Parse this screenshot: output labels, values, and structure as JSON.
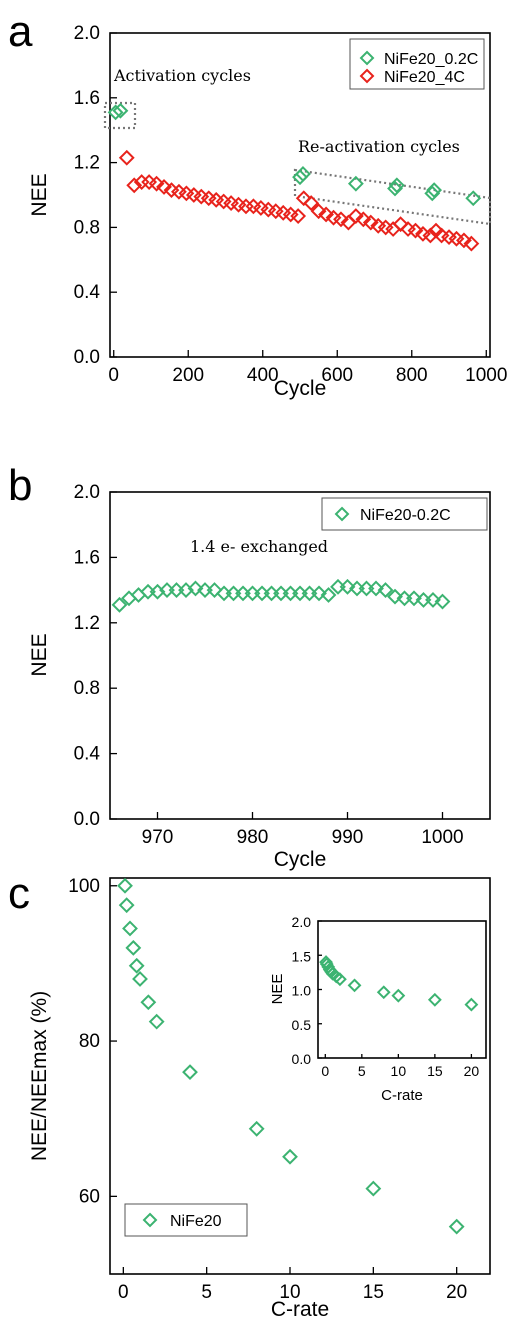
{
  "chart_data": [
    {
      "type": "scatter",
      "panel_label": "a",
      "xlabel": "Cycle",
      "ylabel": "NEE",
      "xlim": [
        -10,
        1010
      ],
      "ylim": [
        0.0,
        2.0
      ],
      "xticks": [
        "0",
        "200",
        "400",
        "600",
        "800",
        "1000"
      ],
      "xtick_values": [
        0,
        200,
        400,
        600,
        800,
        1000
      ],
      "yticks": [
        "0.0",
        "0.4",
        "0.8",
        "1.2",
        "1.6",
        "2.0"
      ],
      "ytick_values": [
        0.0,
        0.4,
        0.8,
        1.2,
        1.6,
        2.0
      ],
      "legend_position": "top-right",
      "series": [
        {
          "name": "NiFe20_0.2C",
          "color": "#3cb371",
          "marker": "diamond-open",
          "x": [
            5,
            18,
            500,
            508,
            650,
            755,
            760,
            855,
            860,
            965
          ],
          "y": [
            1.51,
            1.52,
            1.11,
            1.13,
            1.07,
            1.04,
            1.06,
            1.01,
            1.03,
            0.98
          ]
        },
        {
          "name": "NiFe20_4C",
          "color": "#e8231c",
          "marker": "diamond-open",
          "x": [
            35,
            55,
            75,
            95,
            115,
            135,
            155,
            175,
            195,
            215,
            235,
            255,
            275,
            295,
            315,
            335,
            355,
            375,
            395,
            415,
            435,
            455,
            475,
            495,
            510,
            530,
            550,
            570,
            590,
            610,
            630,
            650,
            670,
            690,
            710,
            730,
            750,
            770,
            790,
            810,
            830,
            850,
            865,
            880,
            900,
            920,
            940,
            960
          ],
          "y": [
            1.23,
            1.06,
            1.08,
            1.08,
            1.07,
            1.05,
            1.03,
            1.02,
            1.01,
            1.0,
            0.99,
            0.98,
            0.97,
            0.96,
            0.95,
            0.94,
            0.93,
            0.93,
            0.92,
            0.91,
            0.9,
            0.89,
            0.88,
            0.87,
            0.98,
            0.95,
            0.9,
            0.88,
            0.86,
            0.85,
            0.83,
            0.87,
            0.85,
            0.83,
            0.81,
            0.8,
            0.79,
            0.82,
            0.79,
            0.78,
            0.76,
            0.75,
            0.78,
            0.75,
            0.74,
            0.73,
            0.72,
            0.7
          ]
        }
      ],
      "annotations": [
        {
          "text": "Activation cycles"
        },
        {
          "text": "Re-activation cycles"
        }
      ]
    },
    {
      "type": "scatter",
      "panel_label": "b",
      "xlabel": "Cycle",
      "ylabel": "NEE",
      "xlim": [
        965,
        1005
      ],
      "ylim": [
        0.0,
        2.0
      ],
      "xticks": [
        "970",
        "980",
        "990",
        "1000"
      ],
      "xtick_values": [
        970,
        980,
        990,
        1000
      ],
      "yticks": [
        "0.0",
        "0.4",
        "0.8",
        "1.2",
        "1.6",
        "2.0"
      ],
      "ytick_values": [
        0.0,
        0.4,
        0.8,
        1.2,
        1.6,
        2.0
      ],
      "legend_position": "top-right",
      "series": [
        {
          "name": "NiFe20-0.2C",
          "color": "#3cb371",
          "marker": "diamond-open",
          "x": [
            966,
            967,
            968,
            969,
            970,
            971,
            972,
            973,
            974,
            975,
            976,
            977,
            978,
            979,
            980,
            981,
            982,
            983,
            984,
            985,
            986,
            987,
            988,
            989,
            990,
            991,
            992,
            993,
            994,
            995,
            996,
            997,
            998,
            999,
            1000
          ],
          "y": [
            1.31,
            1.35,
            1.37,
            1.39,
            1.39,
            1.4,
            1.4,
            1.4,
            1.41,
            1.4,
            1.4,
            1.38,
            1.38,
            1.38,
            1.38,
            1.38,
            1.38,
            1.38,
            1.38,
            1.38,
            1.38,
            1.38,
            1.37,
            1.42,
            1.42,
            1.41,
            1.41,
            1.41,
            1.4,
            1.36,
            1.35,
            1.35,
            1.34,
            1.34,
            1.33
          ]
        }
      ],
      "annotations": [
        {
          "text": "1.4 e- exchanged"
        }
      ]
    },
    {
      "type": "scatter",
      "panel_label": "c",
      "xlabel": "C-rate",
      "ylabel": "NEE/NEEmax (%)",
      "xlim": [
        -0.8,
        22
      ],
      "ylim": [
        50,
        101
      ],
      "xticks": [
        "0",
        "5",
        "10",
        "15",
        "20"
      ],
      "xtick_values": [
        0,
        5,
        10,
        15,
        20
      ],
      "yticks": [
        "60",
        "80",
        "100"
      ],
      "ytick_values": [
        60,
        80,
        100
      ],
      "legend_position": "bottom-left",
      "series": [
        {
          "name": "NiFe20",
          "color": "#3cb371",
          "marker": "diamond-open",
          "x": [
            0.1,
            0.2,
            0.4,
            0.6,
            0.8,
            1.0,
            1.5,
            2.0,
            4.0,
            8.0,
            10.0,
            15.0,
            20.0
          ],
          "y": [
            100,
            97.5,
            94.5,
            92.0,
            89.7,
            88.0,
            85.0,
            82.5,
            76.0,
            68.7,
            65.1,
            61.0,
            56.1
          ]
        }
      ],
      "inset": {
        "type": "scatter",
        "xlabel": "C-rate",
        "ylabel": "NEE",
        "xlim": [
          -1,
          22
        ],
        "ylim": [
          0.0,
          2.0
        ],
        "xticks": [
          "0",
          "5",
          "10",
          "15",
          "20"
        ],
        "xtick_values": [
          0,
          5,
          10,
          15,
          20
        ],
        "yticks": [
          "0.0",
          "0.5",
          "1.0",
          "1.5",
          "2.0"
        ],
        "ytick_values": [
          0.0,
          0.5,
          1.0,
          1.5,
          2.0
        ],
        "series": [
          {
            "color": "#3cb371",
            "marker": "diamond-open",
            "x": [
              0.1,
              0.2,
              0.4,
              0.6,
              0.8,
              1.0,
              1.5,
              2.0,
              4.0,
              8.0,
              10.0,
              15.0,
              20.0
            ],
            "y": [
              1.4,
              1.37,
              1.33,
              1.29,
              1.26,
              1.23,
              1.19,
              1.15,
              1.06,
              0.96,
              0.91,
              0.85,
              0.78
            ]
          }
        ]
      }
    }
  ]
}
